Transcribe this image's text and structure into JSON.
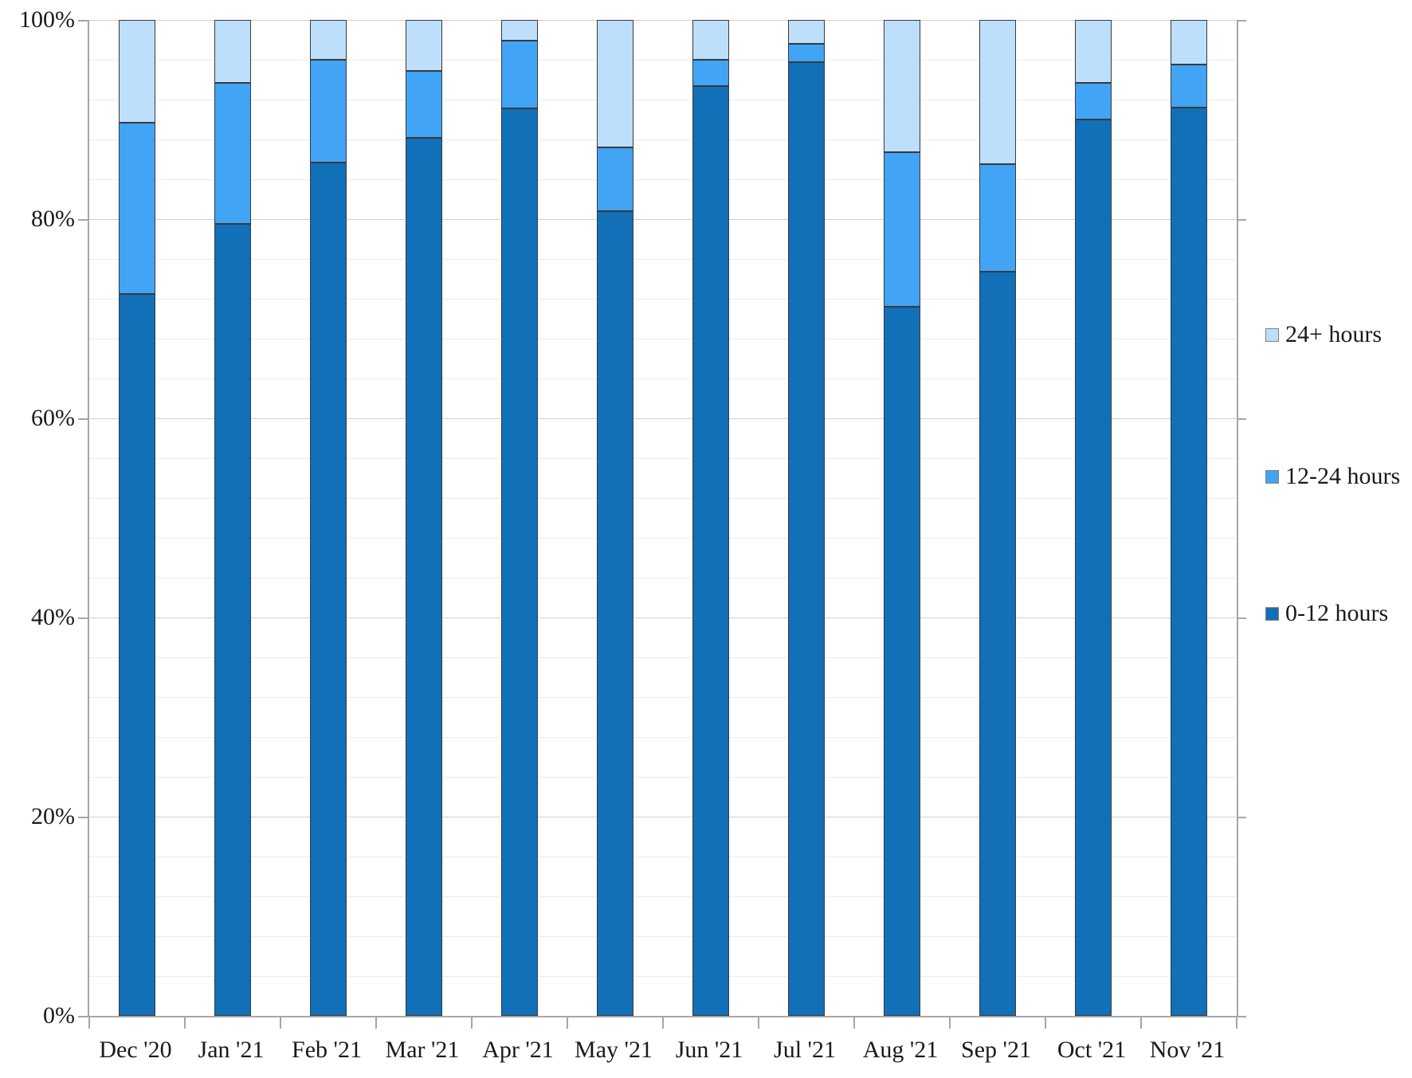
{
  "chart_data": {
    "type": "bar",
    "variant": "stacked-100",
    "title": "",
    "xlabel": "",
    "ylabel": "",
    "ylim": [
      0,
      100
    ],
    "y_major_unit": 20,
    "y_minor_unit": 4,
    "grid": true,
    "y_tick_labels": [
      "0%",
      "20%",
      "40%",
      "60%",
      "80%",
      "100%"
    ],
    "categories": [
      "Dec '20",
      "Jan '21",
      "Feb '21",
      "Mar '21",
      "Apr '21",
      "May '21",
      "Jun '21",
      "Jul '21",
      "Aug '21",
      "Sep '21",
      "Oct '21",
      "Nov '21"
    ],
    "series": [
      {
        "name": "0-12 hours",
        "color": "#1170b8",
        "values": [
          72.5,
          79.5,
          85.7,
          88.2,
          91.1,
          80.8,
          93.4,
          95.8,
          71.2,
          74.7,
          90.0,
          91.2
        ]
      },
      {
        "name": "12-24 hours",
        "color": "#41a4f5",
        "values": [
          17.2,
          14.2,
          10.3,
          6.7,
          6.8,
          6.4,
          2.6,
          1.8,
          15.5,
          10.8,
          3.7,
          4.3
        ]
      },
      {
        "name": "24+ hours",
        "color": "#bddffb",
        "values": [
          10.3,
          6.3,
          4.0,
          5.1,
          2.1,
          12.8,
          4.0,
          2.4,
          13.3,
          14.5,
          6.3,
          4.5
        ]
      }
    ],
    "legend_position": "right",
    "legend_order_top_to_bottom": [
      "24+ hours",
      "12-24 hours",
      "0-12 hours"
    ]
  },
  "legend": {
    "items": [
      {
        "label": "24+ hours",
        "color": "#bddffb"
      },
      {
        "label": "12-24 hours",
        "color": "#41a4f5"
      },
      {
        "label": "0-12 hours",
        "color": "#1170b8"
      }
    ]
  },
  "colors": {
    "background": "#ffffff",
    "axis": "#a6a6a6",
    "gridline_minor": "#ececec",
    "gridline_major": "#d0d0d0",
    "bar_border": "#3a3a3a",
    "text": "#1a1a1a"
  }
}
